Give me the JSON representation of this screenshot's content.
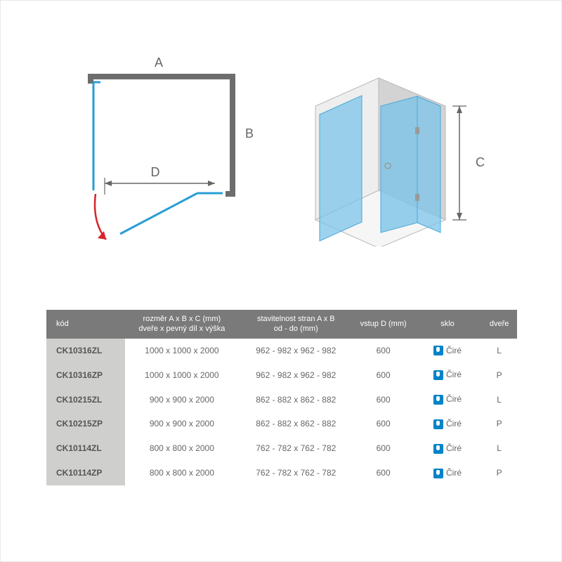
{
  "diagram": {
    "labels": {
      "A": "A",
      "B": "B",
      "C": "C",
      "D": "D"
    },
    "colors": {
      "wall": "#6d6d6d",
      "glass_stroke": "#2a9dd6",
      "glass_fill": "#b7dff2",
      "arrow_red": "#d8232a",
      "dim_text": "#666666",
      "iso_wall_light": "#eeeeee",
      "iso_wall_dark": "#d3d3d3",
      "iso_wall_stroke": "#b8b8b8",
      "iso_glass": "#7cc4e8",
      "handle": "#9a9a9a"
    }
  },
  "table": {
    "headers": {
      "kod": "kód",
      "rozmer_l1": "rozměr A x B x C (mm)",
      "rozmer_l2": "dveře x pevný díl x výška",
      "stav_l1": "stavitelnost stran A x B",
      "stav_l2": "od - do (mm)",
      "vstup": "vstup D (mm)",
      "sklo": "sklo",
      "dvere": "dveře"
    },
    "glass_label": "Čiré",
    "rows": [
      {
        "kod": "CK10316ZL",
        "rozmer": "1000 x 1000 x 2000",
        "stav": "962 - 982 x 962 - 982",
        "vstup": "600",
        "dvere": "L"
      },
      {
        "kod": "CK10316ZP",
        "rozmer": "1000 x 1000 x 2000",
        "stav": "962 - 982 x 962 - 982",
        "vstup": "600",
        "dvere": "P"
      },
      {
        "kod": "CK10215ZL",
        "rozmer": "900 x 900 x 2000",
        "stav": "862 - 882 x 862 - 882",
        "vstup": "600",
        "dvere": "L"
      },
      {
        "kod": "CK10215ZP",
        "rozmer": "900 x 900 x 2000",
        "stav": "862 - 882 x 862 - 882",
        "vstup": "600",
        "dvere": "P"
      },
      {
        "kod": "CK10114ZL",
        "rozmer": "800 x 800 x 2000",
        "stav": "762 - 782 x 762 - 782",
        "vstup": "600",
        "dvere": "L"
      },
      {
        "kod": "CK10114ZP",
        "rozmer": "800 x 800 x 2000",
        "stav": "762 - 782 x 762 - 782",
        "vstup": "600",
        "dvere": "P"
      }
    ],
    "col_widths": [
      "110px",
      "160px",
      "160px",
      "85px",
      "95px",
      "50px"
    ],
    "header_bg": "#7a7a7a",
    "header_fg": "#ffffff",
    "code_bg": "#cfcfce",
    "text_color": "#666666"
  }
}
